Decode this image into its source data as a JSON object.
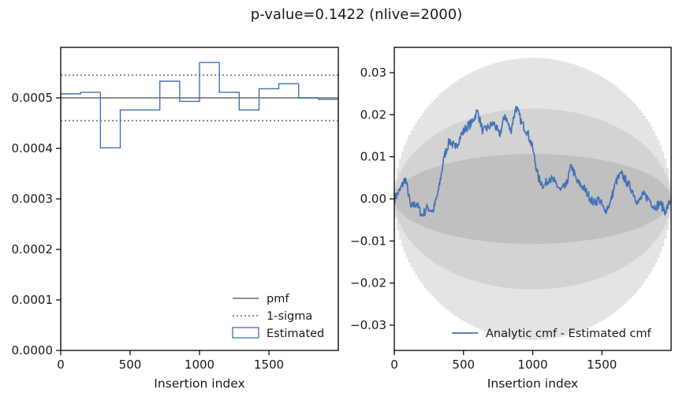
{
  "title": "p-value=0.1422 (nlive=2000)",
  "colors": {
    "estimated": "#4472b8",
    "reference": "#808080",
    "band_outer": "#e4e4e4",
    "band_mid": "#d3d3d3",
    "band_inner": "#c0c0c0",
    "axes": "#000000"
  },
  "chart_data": [
    {
      "type": "line",
      "panel": "left",
      "xlabel": "Insertion index",
      "ylabel": "",
      "xlim": [
        0,
        2000
      ],
      "ylim": [
        0,
        0.0006
      ],
      "xticks": [
        0,
        500,
        1000,
        1500
      ],
      "xtick_labels": [
        "0",
        "500",
        "1000",
        "1500"
      ],
      "yticks": [
        0,
        0.0001,
        0.0002,
        0.0003,
        0.0004,
        0.0005
      ],
      "ytick_labels": [
        "0.0000",
        "0.0001",
        "0.0002",
        "0.0003",
        "0.0004",
        "0.0005"
      ],
      "legend_position": "bottom-right",
      "pmf": {
        "name": "pmf",
        "value": 0.0005
      },
      "sigma": {
        "name": "1-sigma",
        "values": [
          0.000455,
          0.000545
        ]
      },
      "estimated": {
        "name": "Estimated",
        "bin_edges": [
          0,
          143,
          286,
          429,
          571,
          714,
          857,
          1000,
          1143,
          1286,
          1429,
          1571,
          1714,
          1857,
          2000
        ],
        "values": [
          0.000508,
          0.000511,
          0.000401,
          0.000476,
          0.000476,
          0.000533,
          0.000493,
          0.00057,
          0.000511,
          0.000476,
          0.000518,
          0.000528,
          0.0005,
          0.000497
        ]
      }
    },
    {
      "type": "line",
      "panel": "right",
      "xlabel": "Insertion index",
      "ylabel": "",
      "xlim": [
        0,
        2000
      ],
      "ylim": [
        -0.036,
        0.036
      ],
      "xticks": [
        0,
        500,
        1000,
        1500
      ],
      "xtick_labels": [
        "0",
        "500",
        "1000",
        "1500"
      ],
      "yticks": [
        0.03,
        0.02,
        0.01,
        0.0,
        -0.01,
        -0.02,
        -0.03
      ],
      "ytick_labels": [
        "0.03",
        "0.02",
        "0.01",
        "0.00",
        "−0.01",
        "−0.02",
        "−0.03"
      ],
      "legend_position": "bottom-right",
      "bands_half_width_at_center": [
        0.0335,
        0.0215,
        0.0107
      ],
      "series": [
        {
          "name": "Analytic cmf - Estimated cmf",
          "x": [
            0,
            40,
            80,
            120,
            160,
            200,
            240,
            280,
            320,
            360,
            400,
            440,
            480,
            520,
            560,
            600,
            640,
            680,
            720,
            760,
            800,
            840,
            880,
            920,
            960,
            1000,
            1040,
            1080,
            1120,
            1160,
            1200,
            1240,
            1280,
            1320,
            1360,
            1400,
            1440,
            1480,
            1520,
            1560,
            1600,
            1640,
            1680,
            1720,
            1760,
            1800,
            1840,
            1880,
            1920,
            1960,
            2000
          ],
          "y": [
            0.0,
            0.002,
            0.005,
            -0.002,
            -0.001,
            -0.004,
            -0.002,
            -0.003,
            0.002,
            0.01,
            0.014,
            0.012,
            0.015,
            0.017,
            0.018,
            0.021,
            0.016,
            0.017,
            0.018,
            0.015,
            0.02,
            0.016,
            0.022,
            0.018,
            0.016,
            0.012,
            0.005,
            0.003,
            0.005,
            0.004,
            0.002,
            0.003,
            0.008,
            0.004,
            0.003,
            0.001,
            -0.001,
            0.0,
            -0.003,
            -0.001,
            0.004,
            0.006,
            0.004,
            0.002,
            -0.001,
            0.001,
            0.0,
            -0.002,
            -0.001,
            -0.003,
            0.0
          ]
        }
      ]
    }
  ]
}
